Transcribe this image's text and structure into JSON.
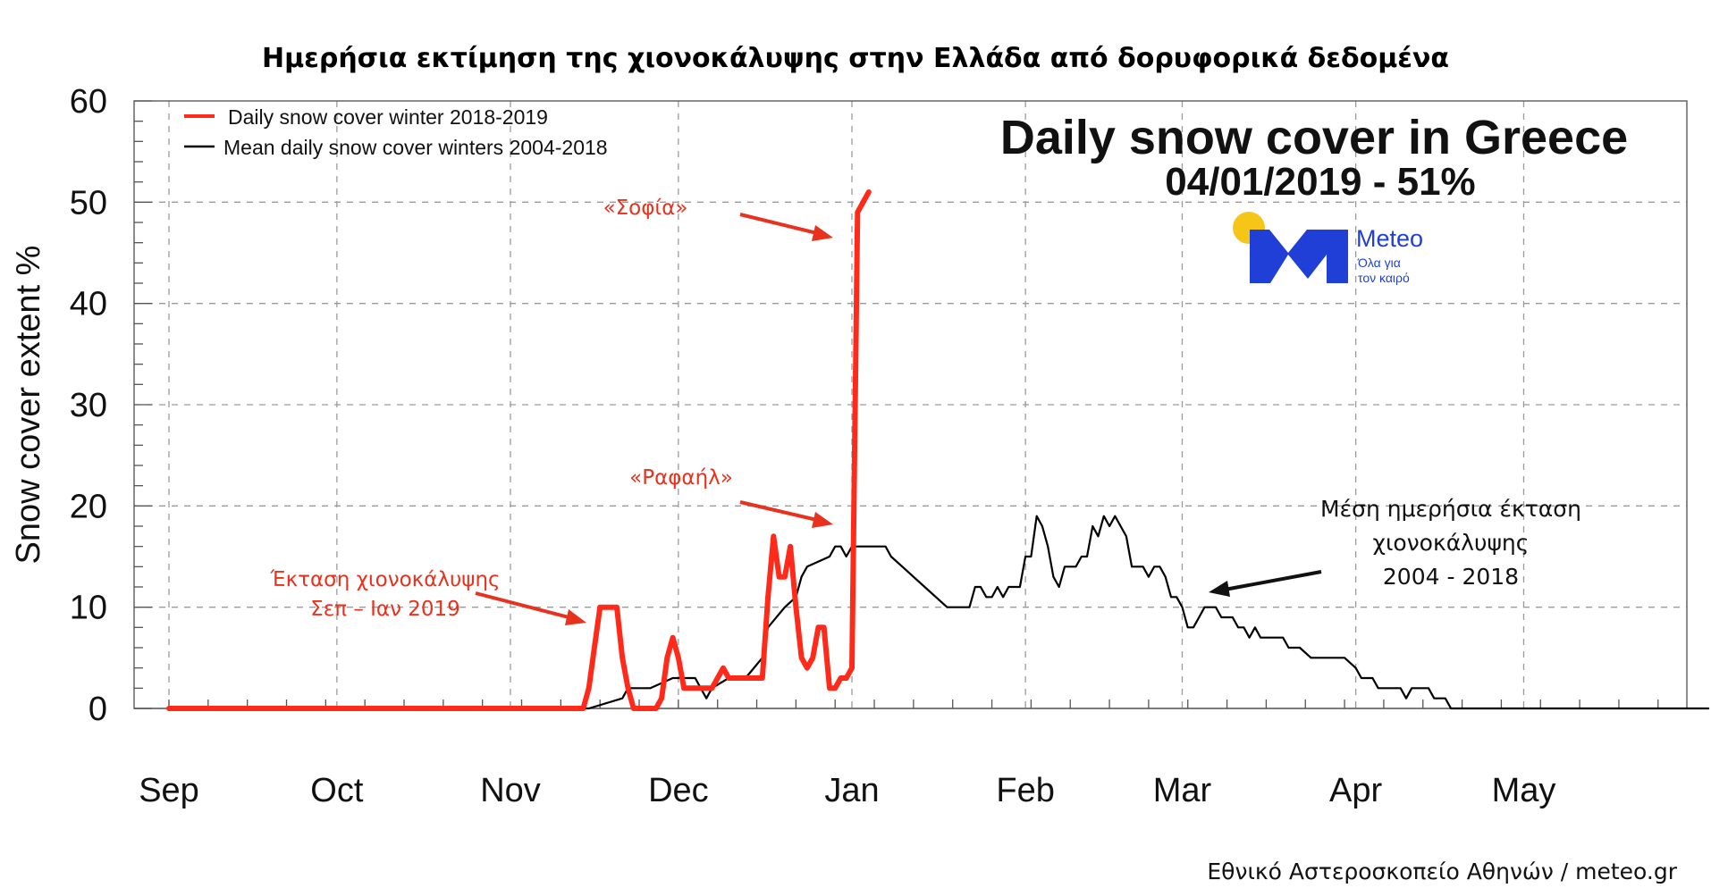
{
  "header": {
    "title": "Ημερήσια εκτίμηση της χιονοκάλυψης στην Ελλάδα από δορυφορικά δεδομένα"
  },
  "inset": {
    "title": "Daily snow cover in Greece",
    "subtitle": "04/01/2019 - 51%"
  },
  "logo": {
    "name": "Meteo",
    "tagline_1": "Όλα για",
    "tagline_2": "τον καιρό",
    "brand_color": "#1f3fd6",
    "sun_color": "#f5c518"
  },
  "annotations": {
    "sofia": "«Σοφία»",
    "rafail": "«Ραφαήλ»",
    "extent_1": "Έκταση χιονοκάλυψης",
    "extent_2": "Σεπ – Ιαν 2019",
    "mean_1": "Μέση ημερήσια έκταση",
    "mean_2": "χιονοκάλυψης",
    "mean_3": "2004 - 2018"
  },
  "credit": "Εθνικό Αστεροσκοπείο Αθηνών / meteo.gr",
  "chart_data": {
    "type": "line",
    "title": "Daily snow cover in Greece",
    "ylabel": "Snow cover extent %",
    "xlabel": "",
    "ylim": [
      0,
      60
    ],
    "y_ticks": [
      0,
      10,
      20,
      30,
      40,
      50,
      60
    ],
    "x_ticks": [
      {
        "label": "Sep",
        "day": 0
      },
      {
        "label": "Oct",
        "day": 30
      },
      {
        "label": "Nov",
        "day": 61
      },
      {
        "label": "Dec",
        "day": 91
      },
      {
        "label": "Jan",
        "day": 122
      },
      {
        "label": "Feb",
        "day": 153
      },
      {
        "label": "Mar",
        "day": 181
      },
      {
        "label": "Apr",
        "day": 212
      },
      {
        "label": "May",
        "day": 242
      }
    ],
    "xlim": [
      -6,
      275
    ],
    "grid": true,
    "legend_position": "top-left",
    "series": [
      {
        "name": "Daily snow cover winter 2018-2019",
        "color": "#ff2a1a",
        "points": [
          [
            0,
            0
          ],
          [
            74,
            0
          ],
          [
            75,
            2
          ],
          [
            76,
            6
          ],
          [
            77,
            10
          ],
          [
            79,
            10
          ],
          [
            80,
            10
          ],
          [
            81,
            5
          ],
          [
            82,
            2
          ],
          [
            83,
            0
          ],
          [
            84,
            0
          ],
          [
            86,
            0
          ],
          [
            87,
            0
          ],
          [
            88,
            1
          ],
          [
            89,
            5
          ],
          [
            90,
            7
          ],
          [
            91,
            5
          ],
          [
            92,
            2
          ],
          [
            95,
            2
          ],
          [
            97,
            2
          ],
          [
            98,
            3
          ],
          [
            99,
            4
          ],
          [
            100,
            3
          ],
          [
            102,
            3
          ],
          [
            104,
            3
          ],
          [
            105,
            3
          ],
          [
            106,
            3
          ],
          [
            107,
            11
          ],
          [
            108,
            17
          ],
          [
            109,
            13
          ],
          [
            110,
            13
          ],
          [
            111,
            16
          ],
          [
            112,
            10
          ],
          [
            113,
            5
          ],
          [
            114,
            4
          ],
          [
            115,
            5
          ],
          [
            116,
            8
          ],
          [
            117,
            8
          ],
          [
            118,
            2
          ],
          [
            119,
            2
          ],
          [
            120,
            3
          ],
          [
            121,
            3
          ],
          [
            122,
            4
          ],
          [
            123,
            49
          ],
          [
            124,
            50
          ],
          [
            125,
            51
          ]
        ]
      },
      {
        "name": "Mean daily snow cover winters 2004-2018",
        "color": "#000000",
        "points": [
          [
            0,
            0
          ],
          [
            75,
            0
          ],
          [
            81,
            1
          ],
          [
            82,
            2
          ],
          [
            86,
            2
          ],
          [
            90,
            3
          ],
          [
            94,
            3
          ],
          [
            95,
            2
          ],
          [
            96,
            1
          ],
          [
            97,
            2
          ],
          [
            100,
            3
          ],
          [
            103,
            3
          ],
          [
            106,
            5
          ],
          [
            107,
            8
          ],
          [
            110,
            10
          ],
          [
            112,
            11
          ],
          [
            113,
            13
          ],
          [
            114,
            14
          ],
          [
            118,
            15
          ],
          [
            119,
            16
          ],
          [
            120,
            16
          ],
          [
            121,
            15
          ],
          [
            122,
            16
          ],
          [
            124,
            16
          ],
          [
            126,
            16
          ],
          [
            128,
            16
          ],
          [
            129,
            15
          ],
          [
            131,
            14
          ],
          [
            133,
            13
          ],
          [
            135,
            12
          ],
          [
            137,
            11
          ],
          [
            139,
            10
          ],
          [
            143,
            10
          ],
          [
            144,
            12
          ],
          [
            145,
            12
          ],
          [
            146,
            11
          ],
          [
            147,
            11
          ],
          [
            148,
            12
          ],
          [
            149,
            11
          ],
          [
            150,
            12
          ],
          [
            152,
            12
          ],
          [
            153,
            15
          ],
          [
            154,
            15
          ],
          [
            155,
            19
          ],
          [
            156,
            18
          ],
          [
            157,
            16
          ],
          [
            158,
            13
          ],
          [
            159,
            12
          ],
          [
            160,
            14
          ],
          [
            161,
            14
          ],
          [
            162,
            14
          ],
          [
            163,
            15
          ],
          [
            164,
            15
          ],
          [
            165,
            18
          ],
          [
            166,
            17
          ],
          [
            167,
            19
          ],
          [
            168,
            18
          ],
          [
            169,
            19
          ],
          [
            170,
            18
          ],
          [
            171,
            17
          ],
          [
            172,
            14
          ],
          [
            173,
            14
          ],
          [
            174,
            14
          ],
          [
            175,
            13
          ],
          [
            176,
            14
          ],
          [
            177,
            14
          ],
          [
            178,
            13
          ],
          [
            179,
            11
          ],
          [
            180,
            11
          ],
          [
            181,
            10
          ],
          [
            182,
            8
          ],
          [
            183,
            8
          ],
          [
            184,
            9
          ],
          [
            185,
            10
          ],
          [
            186,
            10
          ],
          [
            187,
            10
          ],
          [
            188,
            9
          ],
          [
            189,
            9
          ],
          [
            190,
            9
          ],
          [
            191,
            8
          ],
          [
            192,
            8
          ],
          [
            193,
            7
          ],
          [
            194,
            8
          ],
          [
            195,
            7
          ],
          [
            197,
            7
          ],
          [
            199,
            7
          ],
          [
            200,
            6
          ],
          [
            201,
            6
          ],
          [
            202,
            6
          ],
          [
            204,
            5
          ],
          [
            206,
            5
          ],
          [
            208,
            5
          ],
          [
            210,
            5
          ],
          [
            212,
            4
          ],
          [
            213,
            3
          ],
          [
            215,
            3
          ],
          [
            216,
            2
          ],
          [
            220,
            2
          ],
          [
            221,
            1
          ],
          [
            222,
            2
          ],
          [
            225,
            2
          ],
          [
            226,
            1
          ],
          [
            228,
            1
          ],
          [
            229,
            0
          ],
          [
            275,
            0
          ]
        ]
      }
    ]
  }
}
